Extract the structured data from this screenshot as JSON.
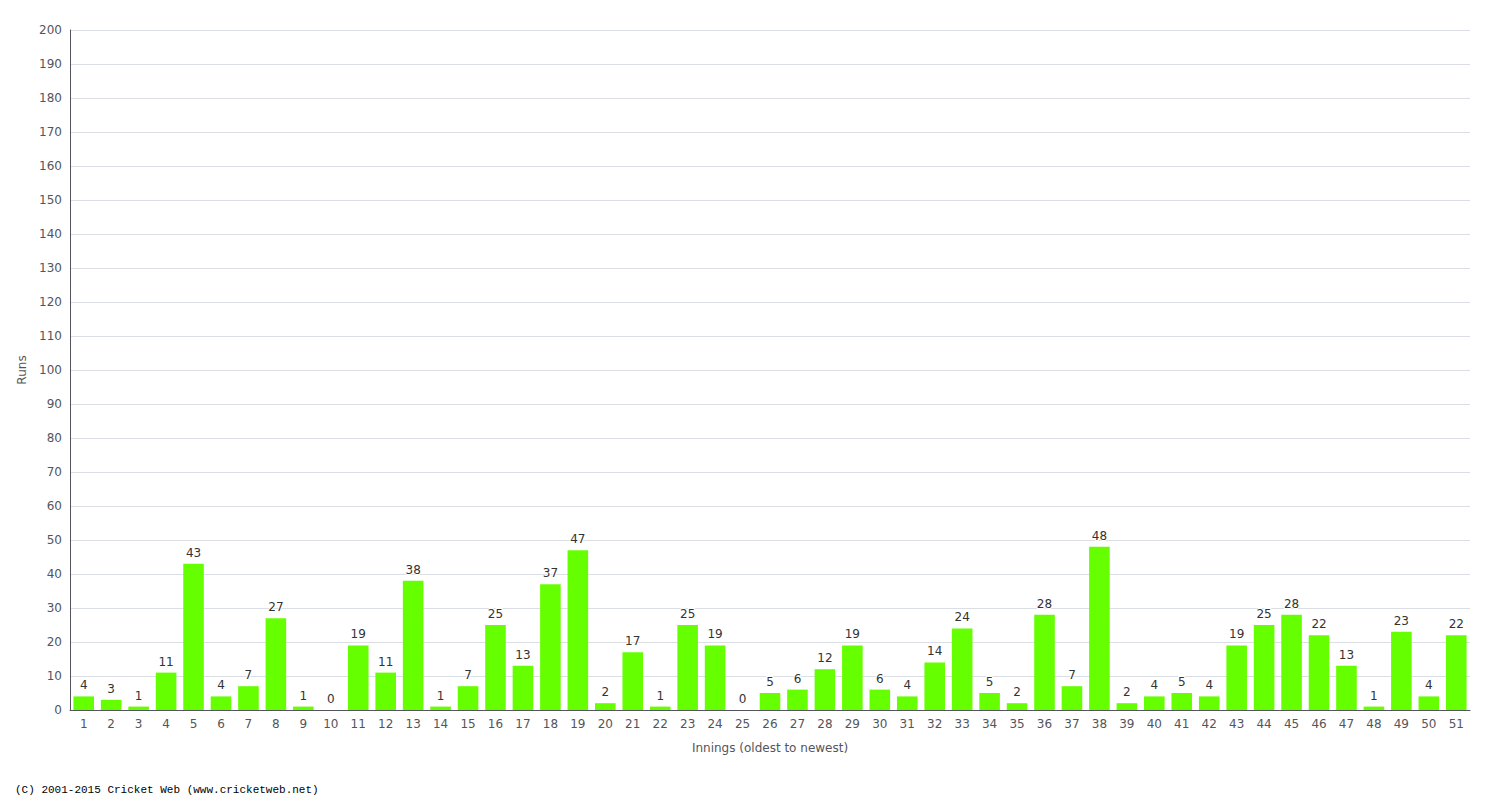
{
  "chart_data": {
    "type": "bar",
    "xlabel": "Innings (oldest to newest)",
    "ylabel": "Runs",
    "categories": [
      "1",
      "2",
      "3",
      "4",
      "5",
      "6",
      "7",
      "8",
      "9",
      "10",
      "11",
      "12",
      "13",
      "14",
      "15",
      "16",
      "17",
      "18",
      "19",
      "20",
      "21",
      "22",
      "23",
      "24",
      "25",
      "26",
      "27",
      "28",
      "29",
      "30",
      "31",
      "32",
      "33",
      "34",
      "35",
      "36",
      "37",
      "38",
      "39",
      "40",
      "41",
      "42",
      "43",
      "44",
      "45",
      "46",
      "47",
      "48",
      "49",
      "50",
      "51"
    ],
    "values": [
      4,
      3,
      1,
      11,
      43,
      4,
      7,
      27,
      1,
      0,
      19,
      11,
      38,
      1,
      7,
      25,
      13,
      37,
      47,
      2,
      17,
      1,
      25,
      19,
      0,
      5,
      6,
      12,
      19,
      6,
      4,
      14,
      24,
      5,
      2,
      28,
      7,
      48,
      2,
      4,
      5,
      4,
      19,
      25,
      28,
      22,
      13,
      1,
      23,
      4,
      22
    ],
    "color": "#66ff00",
    "ylim": [
      0,
      200
    ],
    "yticks": [
      0,
      10,
      20,
      30,
      40,
      50,
      60,
      70,
      80,
      90,
      100,
      110,
      120,
      130,
      140,
      150,
      160,
      170,
      180,
      190,
      200
    ],
    "grid": true,
    "data_labels": true,
    "annotations": [
      "(C) 2001-2015 Cricket Web (www.cricketweb.net)"
    ]
  }
}
